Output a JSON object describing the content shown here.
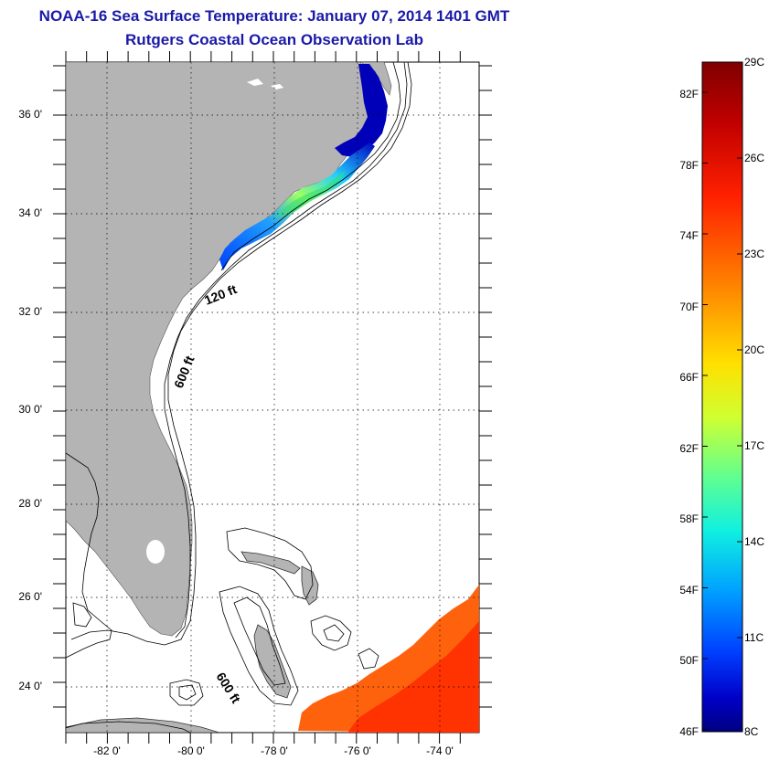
{
  "header": {
    "title": "NOAA-16 Sea Surface Temperature:  January 07, 2014 1401 GMT",
    "subtitle": "Rutgers Coastal Ocean Observation Lab"
  },
  "map": {
    "lat_labels": [
      "36 0'",
      "34 0'",
      "32 0'",
      "30 0'",
      "28 0'",
      "26 0'",
      "24 0'"
    ],
    "lon_labels": [
      "-82 0'",
      "-80 0'",
      "-78 0'",
      "-76 0'",
      "-74 0'"
    ],
    "contour_labels": [
      "120 ft",
      "600 ft",
      "600 ft"
    ],
    "land_color": "#b4b4b4"
  },
  "colorbar": {
    "fahrenheit_labels": [
      "82F",
      "78F",
      "74F",
      "70F",
      "66F",
      "62F",
      "58F",
      "54F",
      "50F",
      "46F"
    ],
    "celsius_labels": [
      "29C",
      "26C",
      "23C",
      "20C",
      "17C",
      "14C",
      "11C",
      "8C"
    ],
    "colors": [
      "#800000",
      "#d40000",
      "#ff3c00",
      "#ff8a00",
      "#ffd400",
      "#dcff20",
      "#80ff70",
      "#20ffd0",
      "#00b4ff",
      "#0050ff",
      "#0000d0",
      "#000080"
    ]
  }
}
